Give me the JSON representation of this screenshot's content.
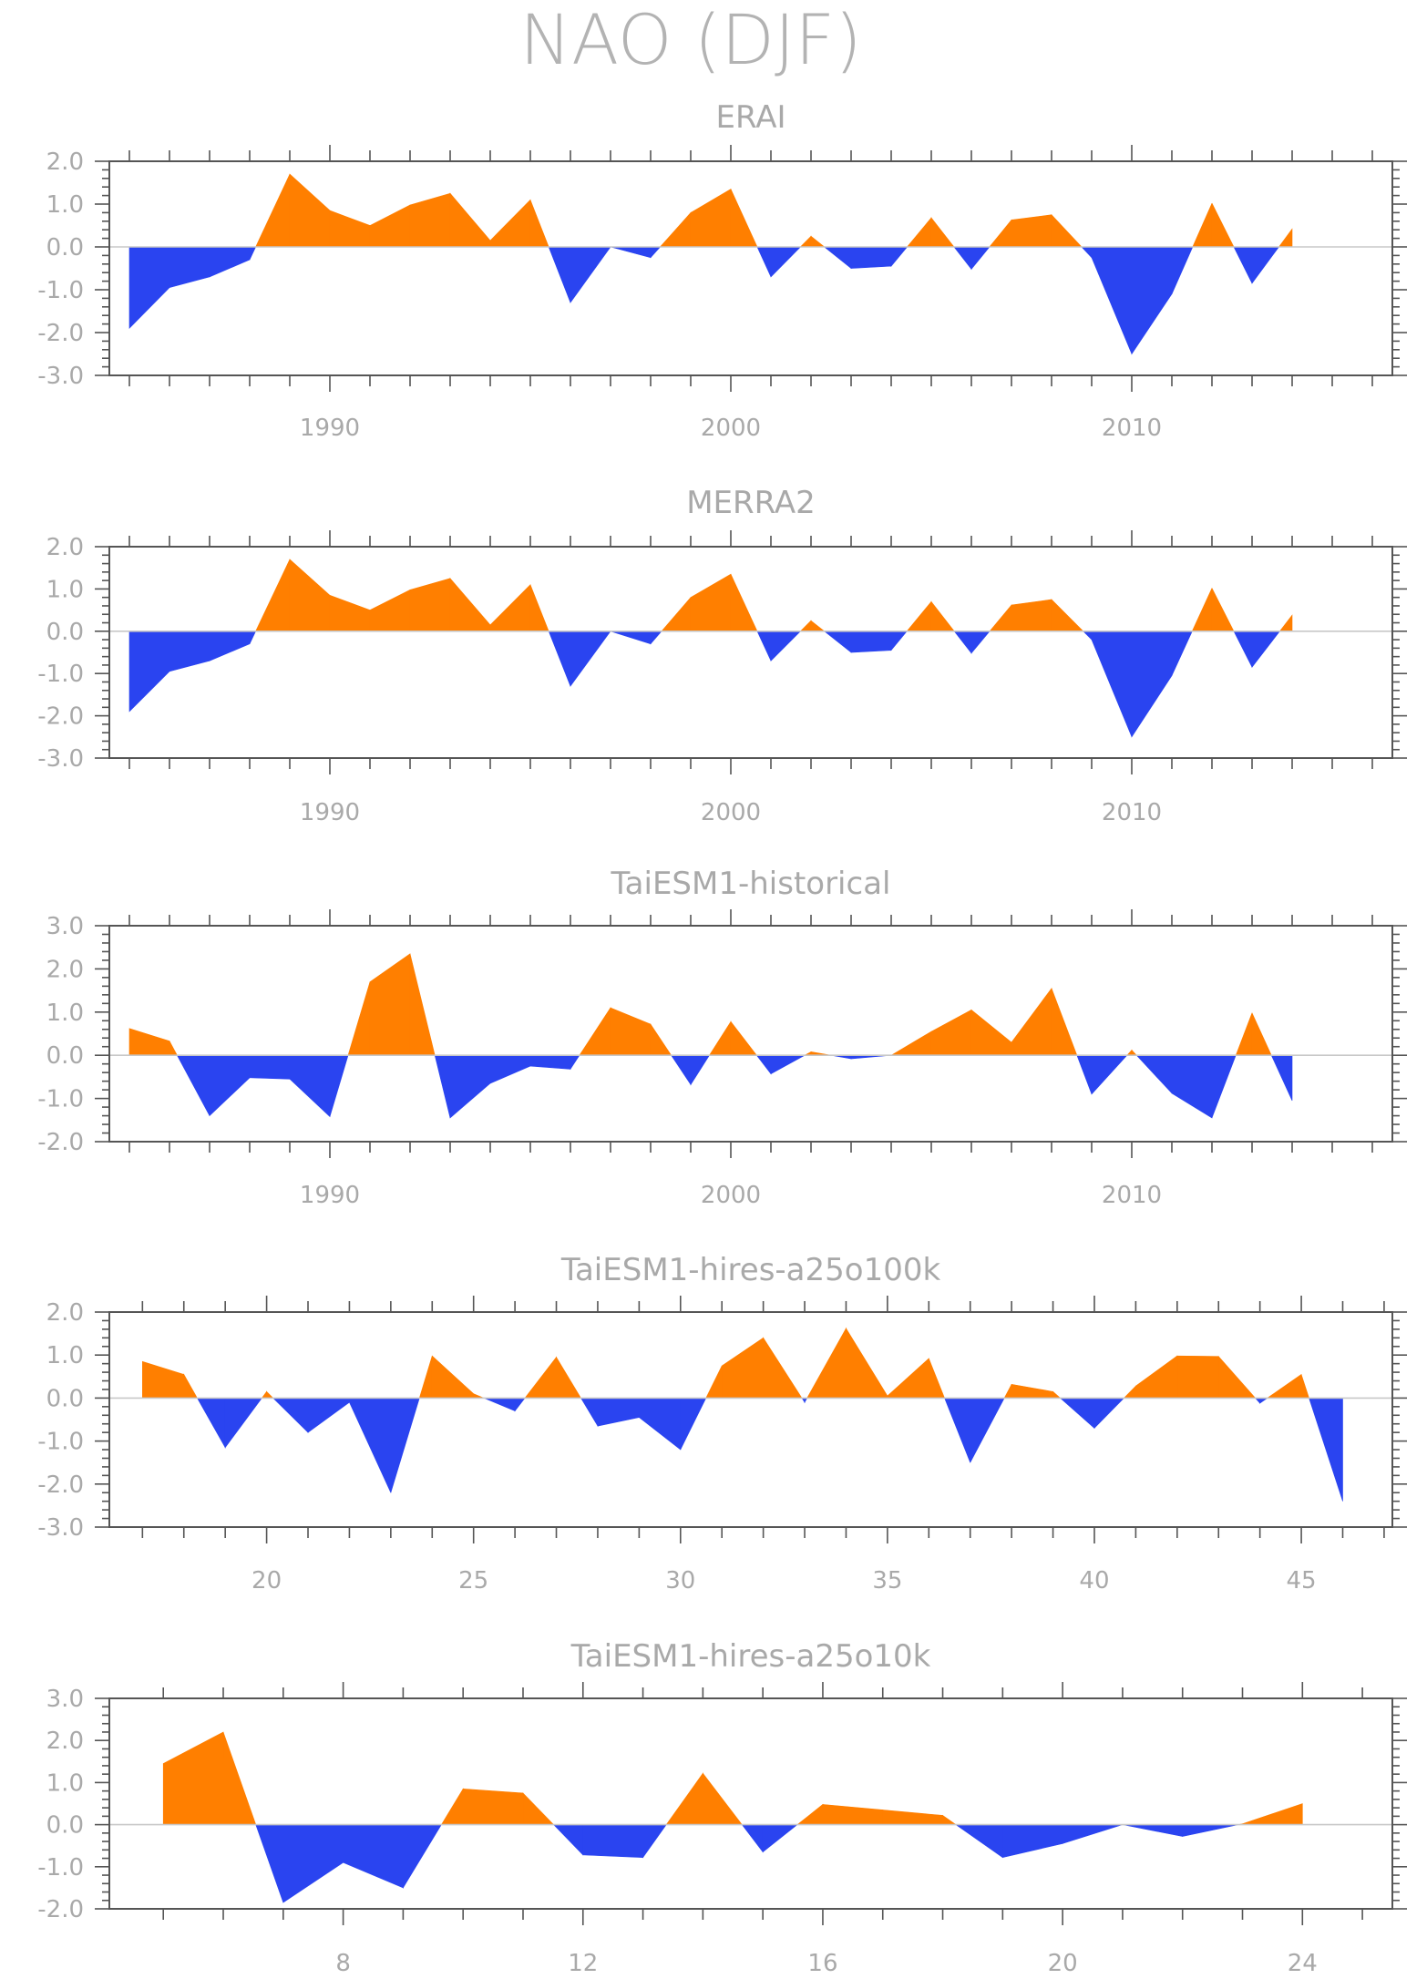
{
  "title": "NAO (DJF)",
  "colors": {
    "positive": "#ff7f00",
    "negative": "#2a44f0"
  },
  "chart_data": [
    {
      "type": "area",
      "title": "ERAI",
      "x": [
        1985,
        1986,
        1987,
        1988,
        1989,
        1990,
        1991,
        1992,
        1993,
        1994,
        1995,
        1996,
        1997,
        1998,
        1999,
        2000,
        2001,
        2002,
        2003,
        2004,
        2005,
        2006,
        2007,
        2008,
        2009,
        2010,
        2011,
        2012,
        2013,
        2014
      ],
      "values": [
        -1.9,
        -0.95,
        -0.7,
        -0.3,
        1.7,
        0.85,
        0.5,
        0.98,
        1.25,
        0.15,
        1.1,
        -1.3,
        0.0,
        -0.25,
        0.8,
        1.35,
        -0.7,
        0.25,
        -0.5,
        -0.45,
        0.68,
        -0.52,
        0.63,
        0.75,
        -0.25,
        -2.5,
        -1.1,
        1.02,
        -0.85,
        0.42
      ],
      "xlim": [
        1984.5,
        2016.5
      ],
      "ylim": [
        -3,
        2
      ],
      "yticks": [
        "2.0",
        "1.0",
        "0.0",
        "-1.0",
        "-2.0",
        "-3.0"
      ],
      "xticks": [
        "1990",
        "2000",
        "2010"
      ],
      "xtick_values": [
        1990,
        2000,
        2010
      ]
    },
    {
      "type": "area",
      "title": "MERRA2",
      "x": [
        1985,
        1986,
        1987,
        1988,
        1989,
        1990,
        1991,
        1992,
        1993,
        1994,
        1995,
        1996,
        1997,
        1998,
        1999,
        2000,
        2001,
        2002,
        2003,
        2004,
        2005,
        2006,
        2007,
        2008,
        2009,
        2010,
        2011,
        2012,
        2013,
        2014
      ],
      "values": [
        -1.9,
        -0.95,
        -0.7,
        -0.3,
        1.7,
        0.85,
        0.5,
        0.98,
        1.25,
        0.15,
        1.1,
        -1.3,
        0.0,
        -0.3,
        0.8,
        1.35,
        -0.7,
        0.25,
        -0.5,
        -0.45,
        0.7,
        -0.52,
        0.62,
        0.75,
        -0.2,
        -2.5,
        -1.05,
        1.02,
        -0.85,
        0.38
      ],
      "xlim": [
        1984.5,
        2016.5
      ],
      "ylim": [
        -3,
        2
      ],
      "yticks": [
        "2.0",
        "1.0",
        "0.0",
        "-1.0",
        "-2.0",
        "-3.0"
      ],
      "xticks": [
        "1990",
        "2000",
        "2010"
      ],
      "xtick_values": [
        1990,
        2000,
        2010
      ]
    },
    {
      "type": "area",
      "title": "TaiESM1-historical",
      "x": [
        1985,
        1986,
        1987,
        1988,
        1989,
        1990,
        1991,
        1992,
        1993,
        1994,
        1995,
        1996,
        1997,
        1998,
        1999,
        2000,
        2001,
        2002,
        2003,
        2004,
        2005,
        2006,
        2007,
        2008,
        2009,
        2010,
        2011,
        2012,
        2013,
        2014
      ],
      "values": [
        0.62,
        0.33,
        -1.4,
        -0.52,
        -0.55,
        -1.42,
        1.7,
        2.35,
        -1.45,
        -0.65,
        -0.25,
        -0.32,
        1.1,
        0.72,
        -0.68,
        0.78,
        -0.43,
        0.08,
        -0.08,
        0.0,
        0.55,
        1.05,
        0.3,
        1.55,
        -0.9,
        0.12,
        -0.88,
        -1.45,
        0.98,
        -1.05
      ],
      "xlim": [
        1984.5,
        2016.5
      ],
      "ylim": [
        -2,
        3
      ],
      "yticks": [
        "3.0",
        "2.0",
        "1.0",
        "0.0",
        "-1.0",
        "-2.0"
      ],
      "xticks": [
        "1990",
        "2000",
        "2010"
      ],
      "xtick_values": [
        1990,
        2000,
        2010
      ]
    },
    {
      "type": "area",
      "title": "TaiESM1-hires-a25o100k",
      "x": [
        17,
        18,
        19,
        20,
        21,
        22,
        23,
        24,
        25,
        26,
        27,
        28,
        29,
        30,
        31,
        32,
        33,
        34,
        35,
        36,
        37,
        38,
        39,
        40,
        41,
        42,
        43,
        44,
        45,
        46
      ],
      "values": [
        0.85,
        0.55,
        -1.15,
        0.15,
        -0.8,
        -0.1,
        -2.2,
        0.98,
        0.1,
        -0.3,
        0.95,
        -0.65,
        -0.45,
        -1.2,
        0.75,
        1.4,
        -0.1,
        1.62,
        0.05,
        0.92,
        -1.5,
        0.32,
        0.15,
        -0.7,
        0.28,
        0.98,
        0.97,
        -0.12,
        0.55,
        -2.4
      ],
      "xlim": [
        16.2,
        47.2
      ],
      "ylim": [
        -3,
        2
      ],
      "yticks": [
        "2.0",
        "1.0",
        "0.0",
        "-1.0",
        "-2.0",
        "-3.0"
      ],
      "xticks": [
        "20",
        "25",
        "30",
        "35",
        "40",
        "45"
      ],
      "xtick_values": [
        20,
        25,
        30,
        35,
        40,
        45
      ]
    },
    {
      "type": "area",
      "title": "TaiESM1-hires-a25o10k",
      "x": [
        5,
        6,
        7,
        8,
        9,
        10,
        11,
        12,
        13,
        14,
        15,
        16,
        17,
        18,
        19,
        20,
        21,
        22,
        23,
        24
      ],
      "values": [
        1.45,
        2.2,
        -1.85,
        -0.9,
        -1.5,
        0.85,
        0.75,
        -0.72,
        -0.78,
        1.22,
        -0.65,
        0.48,
        0.35,
        0.22,
        -0.78,
        -0.45,
        0.0,
        -0.28,
        0.02,
        0.5
      ],
      "xlim": [
        4.1,
        25.5
      ],
      "ylim": [
        -2,
        3
      ],
      "yticks": [
        "3.0",
        "2.0",
        "1.0",
        "0.0",
        "-1.0",
        "-2.0"
      ],
      "xticks": [
        "8",
        "12",
        "16",
        "20",
        "24"
      ],
      "xtick_values": [
        8,
        12,
        16,
        20,
        24
      ]
    }
  ]
}
